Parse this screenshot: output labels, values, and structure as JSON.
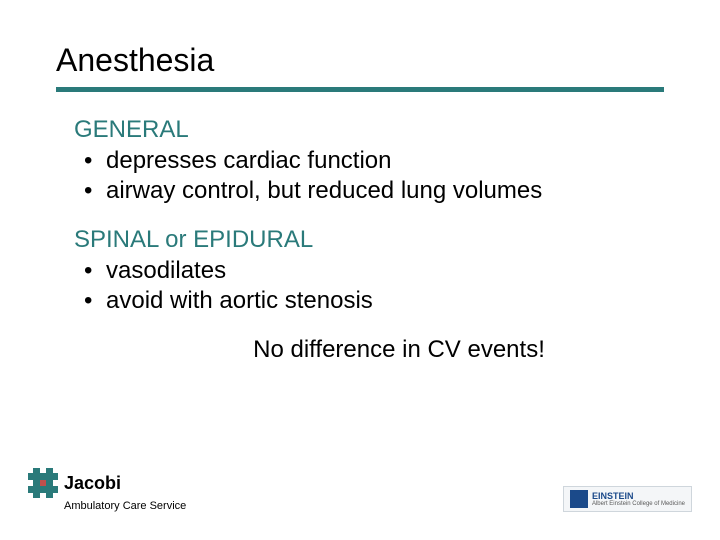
{
  "title": "Anesthesia",
  "colors": {
    "accent": "#2a7a7a",
    "text": "#000000",
    "background": "#ffffff",
    "logo_dot": "#c0504d",
    "einstein_blue": "#1b4a8a"
  },
  "section1": {
    "heading": "GENERAL",
    "bullets": [
      "depresses cardiac function",
      "airway control, but reduced lung volumes"
    ]
  },
  "section2": {
    "heading": "SPINAL or EPIDURAL",
    "bullets": [
      "vasodilates",
      "avoid with aortic stenosis"
    ]
  },
  "callout": "No difference in CV events!",
  "footer": {
    "logo_name": "Jacobi",
    "subtitle": "Ambulatory Care Service",
    "right_logo_top": "EINSTEIN",
    "right_logo_bottom": "Albert Einstein College of Medicine"
  }
}
